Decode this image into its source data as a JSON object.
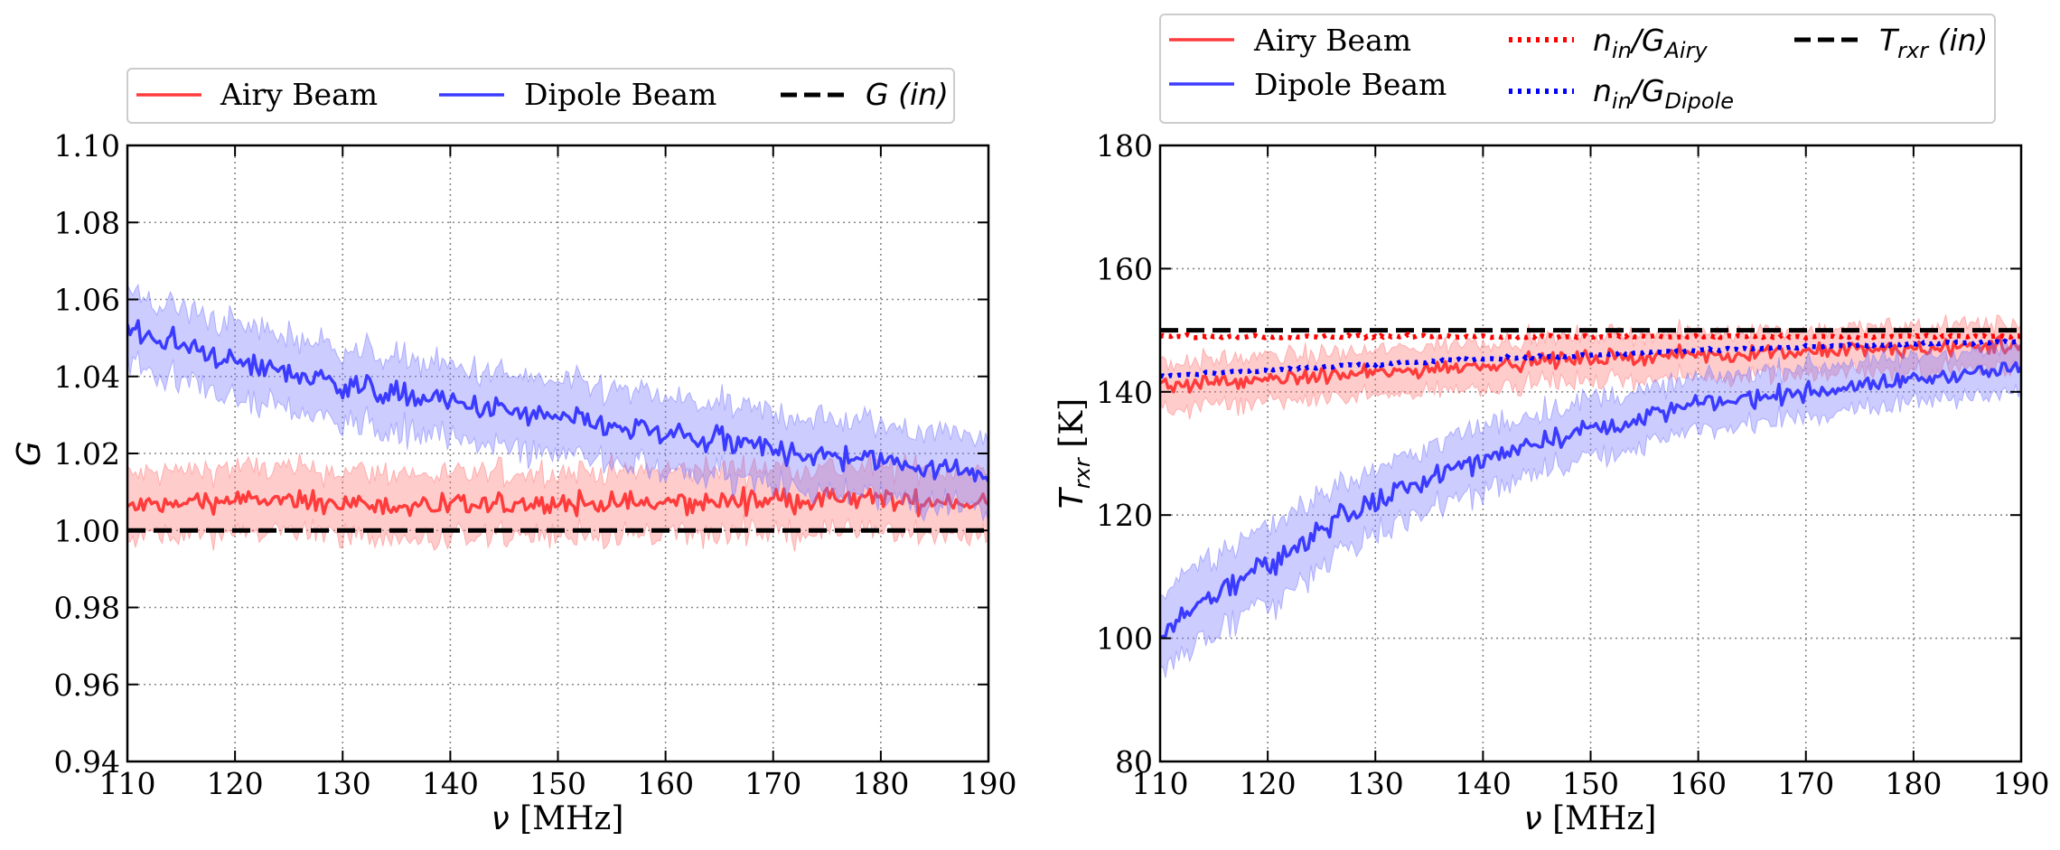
{
  "chart_data": [
    {
      "type": "line",
      "panel": "left",
      "xlabel": "ν [MHz]",
      "ylabel": "G",
      "xlim": [
        110,
        190
      ],
      "ylim": [
        0.94,
        1.1
      ],
      "xticks": [
        "110",
        "120",
        "130",
        "140",
        "150",
        "160",
        "170",
        "180",
        "190"
      ],
      "yticks": [
        "0.94",
        "0.96",
        "0.98",
        "1.00",
        "1.02",
        "1.04",
        "1.06",
        "1.08",
        "1.10"
      ],
      "grid": true,
      "legend_position": "top",
      "series": [
        {
          "name": "Airy Beam",
          "style": "solid",
          "color": "#ff3b3b",
          "band_color": "#ff7a7a",
          "x": [
            110,
            120,
            130,
            140,
            150,
            160,
            170,
            180,
            190
          ],
          "values": [
            1.006,
            1.008,
            1.007,
            1.006,
            1.007,
            1.007,
            1.008,
            1.008,
            1.007
          ],
          "band": [
            0.008,
            0.008,
            0.008,
            0.008,
            0.008,
            0.008,
            0.008,
            0.008,
            0.008
          ]
        },
        {
          "name": "Dipole Beam",
          "style": "solid",
          "color": "#3b3bff",
          "band_color": "#7a7aff",
          "x": [
            110,
            120,
            130,
            140,
            150,
            160,
            170,
            180,
            190
          ],
          "values": [
            1.052,
            1.044,
            1.038,
            1.033,
            1.029,
            1.025,
            1.021,
            1.018,
            1.015
          ],
          "band": [
            0.009,
            0.009,
            0.009,
            0.009,
            0.009,
            0.009,
            0.009,
            0.009,
            0.009
          ]
        },
        {
          "name": "G (in)",
          "style": "dashed",
          "color": "#000000",
          "x": [
            110,
            190
          ],
          "values": [
            1.0,
            1.0
          ]
        }
      ],
      "legend": [
        {
          "label": "Airy Beam",
          "style": "solid",
          "color": "#ff3b3b"
        },
        {
          "label": "Dipole Beam",
          "style": "solid",
          "color": "#3b3bff"
        },
        {
          "label": "G (in)",
          "style": "dashed",
          "color": "#000000"
        }
      ]
    },
    {
      "type": "line",
      "panel": "right",
      "xlabel": "ν [MHz]",
      "ylabel": "T_rxr [K]",
      "xlim": [
        110,
        190
      ],
      "ylim": [
        80,
        180
      ],
      "xticks": [
        "110",
        "120",
        "130",
        "140",
        "150",
        "160",
        "170",
        "180",
        "190"
      ],
      "yticks": [
        "80",
        "100",
        "120",
        "140",
        "160",
        "180"
      ],
      "grid": true,
      "legend_position": "top",
      "series": [
        {
          "name": "Airy Beam",
          "style": "solid",
          "color": "#ff3b3b",
          "band_color": "#ff7a7a",
          "x": [
            110,
            120,
            130,
            140,
            150,
            160,
            170,
            180,
            190
          ],
          "values": [
            141,
            142,
            143,
            144.5,
            145.5,
            146,
            146.5,
            147,
            147.5
          ],
          "band": [
            3.5,
            3.5,
            3.5,
            3.5,
            3.5,
            3.5,
            3.5,
            3.5,
            3.5
          ]
        },
        {
          "name": "Dipole Beam",
          "style": "solid",
          "color": "#3b3bff",
          "band_color": "#7a7aff",
          "x": [
            110,
            115,
            120,
            125,
            130,
            135,
            140,
            145,
            150,
            155,
            160,
            165,
            170,
            175,
            180,
            185,
            190
          ],
          "values": [
            100,
            107,
            112,
            118,
            122,
            126,
            129,
            132,
            134,
            136,
            138,
            139,
            140,
            141,
            142,
            143,
            144
          ],
          "band": [
            6,
            6,
            6,
            5.5,
            5,
            5,
            5,
            4.5,
            4.5,
            4,
            4,
            4,
            4,
            3.5,
            3.5,
            3.5,
            3.5
          ]
        },
        {
          "name": "n_in/G_Airy",
          "style": "dotted",
          "color": "#ff0000",
          "x": [
            110,
            120,
            130,
            140,
            150,
            160,
            170,
            180,
            190
          ],
          "values": [
            149,
            149,
            149,
            149,
            149,
            149,
            149,
            149,
            149
          ]
        },
        {
          "name": "n_in/G_Dipole",
          "style": "dotted",
          "color": "#0000ff",
          "x": [
            110,
            120,
            130,
            140,
            150,
            160,
            170,
            180,
            190
          ],
          "values": [
            142.5,
            143.5,
            144.5,
            145.3,
            146,
            146.7,
            147.3,
            147.8,
            148.2
          ]
        },
        {
          "name": "T_rxr (in)",
          "style": "dashed",
          "color": "#000000",
          "x": [
            110,
            190
          ],
          "values": [
            150,
            150
          ]
        }
      ],
      "legend": [
        {
          "label": "Airy Beam",
          "style": "solid",
          "color": "#ff3b3b"
        },
        {
          "label": "Dipole Beam",
          "style": "solid",
          "color": "#3b3bff"
        },
        {
          "label": "n_in/G_Airy",
          "style": "dotted",
          "color": "#ff0000"
        },
        {
          "label": "n_in/G_Dipole",
          "style": "dotted",
          "color": "#0000ff"
        },
        {
          "label": "T_rxr (in)",
          "style": "dashed",
          "color": "#000000"
        }
      ]
    }
  ]
}
